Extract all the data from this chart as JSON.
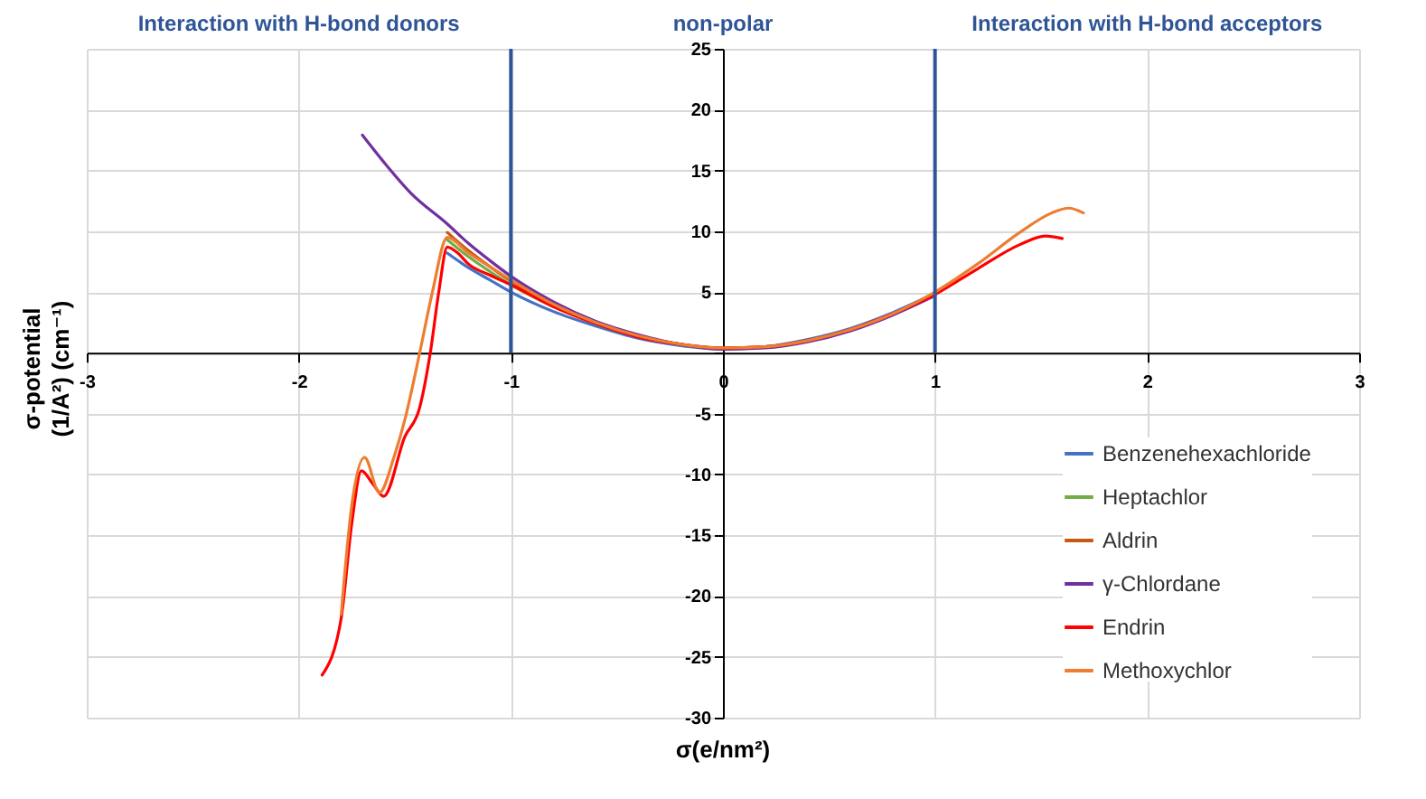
{
  "chart_data": {
    "type": "line",
    "xlabel": "σ(e/nm²)",
    "ylabel": "σ-potential (1/A²) (cm⁻¹)",
    "annotations": [
      "Interaction with H-bond donors",
      "non-polar",
      "Interaction with H-bond acceptors"
    ],
    "xlim": [
      -3,
      3
    ],
    "xticks": [
      -3,
      -2,
      -1,
      0,
      1,
      2,
      3
    ],
    "ylim": [
      -30,
      25
    ],
    "yticks": [
      -30,
      -25,
      -20,
      -15,
      -10,
      -5,
      {
        "value": 0,
        "label": null
      },
      5,
      10,
      15,
      20,
      25
    ],
    "grid": true,
    "legend": "bottom right",
    "marker": "none",
    "line_style": "solid",
    "ref_lines": [
      {
        "axis": "x",
        "value": -1,
        "color": "#2f5597"
      },
      {
        "axis": "x",
        "value": 1,
        "color": "#2f5597"
      }
    ],
    "series": [
      {
        "name": "Benzenehexachloride",
        "color": "#4472c4",
        "x": [
          -1.3,
          -1.2,
          -1.1,
          -1,
          -0.8,
          -0.6,
          -0.4,
          -0.2,
          0,
          0.2,
          0.4,
          0.6,
          0.8,
          1
        ],
        "values": [
          8.2,
          7.0,
          6.0,
          5.0,
          3.4,
          2.2,
          1.2,
          0.6,
          0.3,
          0.5,
          1.1,
          2.0,
          3.3,
          4.9
        ]
      },
      {
        "name": "Heptachlor",
        "color": "#70ad47",
        "x": [
          -1.3,
          -1.2,
          -1.1,
          -1,
          -0.8
        ],
        "values": [
          9.3,
          7.9,
          6.7,
          5.6,
          3.8
        ]
      },
      {
        "name": "Aldrin",
        "color": "#c55a11",
        "x": [
          -1.3,
          -1.2,
          -1.1,
          -1,
          -0.8,
          -0.6,
          -0.4,
          -0.2,
          0,
          0.2,
          0.4,
          0.6,
          0.8,
          1
        ],
        "values": [
          9.9,
          8.4,
          7.1,
          5.9,
          4.0,
          2.5,
          1.4,
          0.7,
          0.4,
          0.5,
          1.0,
          1.9,
          3.2,
          4.8
        ]
      },
      {
        "name": "γ-Chlordane",
        "color": "#7030a0",
        "x": [
          -1.7,
          -1.6,
          -1.47,
          -1.3,
          -1.2,
          -1.1,
          -1,
          -0.8,
          -0.6,
          -0.4,
          -0.2,
          0,
          0.2,
          0.4,
          0.6,
          0.8,
          1
        ],
        "values": [
          17.9,
          15.7,
          13.1,
          10.6,
          9.0,
          7.6,
          6.3,
          4.2,
          2.6,
          1.5,
          0.7,
          0.3,
          0.4,
          0.9,
          1.8,
          3.1,
          4.7
        ]
      },
      {
        "name": "Endrin",
        "color": "#ff0000",
        "x": [
          -1.89,
          -1.8,
          -1.75,
          -1.705,
          -1.65,
          -1.6,
          -1.5,
          -1.43,
          -1.38,
          -1.34,
          -1.3,
          -1.25,
          -1.2,
          -1.1,
          -1,
          -0.8,
          -0.6,
          -0.4,
          -0.2,
          0,
          0.2,
          0.4,
          0.6,
          0.8,
          1,
          1.2,
          1.4,
          1.52,
          1.6
        ],
        "values": [
          -26.5,
          -21.8,
          -14,
          -9.7,
          -10.8,
          -11.8,
          -6.9,
          -4.5,
          0,
          5,
          8.7,
          8.2,
          7.3,
          6.4,
          5.6,
          3.8,
          2.4,
          1.3,
          0.7,
          0.4,
          0.5,
          1.0,
          1.9,
          3.2,
          4.8,
          6.9,
          8.9,
          9.6,
          9.4
        ]
      },
      {
        "name": "Methoxychlor",
        "color": "#ed7d31",
        "x": [
          -1.8,
          -1.75,
          -1.69,
          -1.62,
          -1.55,
          -1.5,
          -1.43,
          -1.37,
          -1.3,
          -1.2,
          -1.1,
          -1,
          -0.8,
          -0.6,
          -0.4,
          -0.2,
          0,
          0.2,
          0.4,
          0.6,
          0.8,
          1,
          1.2,
          1.4,
          1.55,
          1.63,
          1.7
        ],
        "values": [
          -21.5,
          -12.5,
          -8.6,
          -11.5,
          -8.5,
          -5.5,
          0,
          5,
          9.5,
          8.2,
          7.1,
          6.0,
          4.0,
          2.5,
          1.4,
          0.7,
          0.4,
          0.5,
          1.0,
          1.9,
          3.2,
          5.0,
          7.3,
          9.9,
          11.5,
          11.9,
          11.5
        ]
      }
    ]
  }
}
